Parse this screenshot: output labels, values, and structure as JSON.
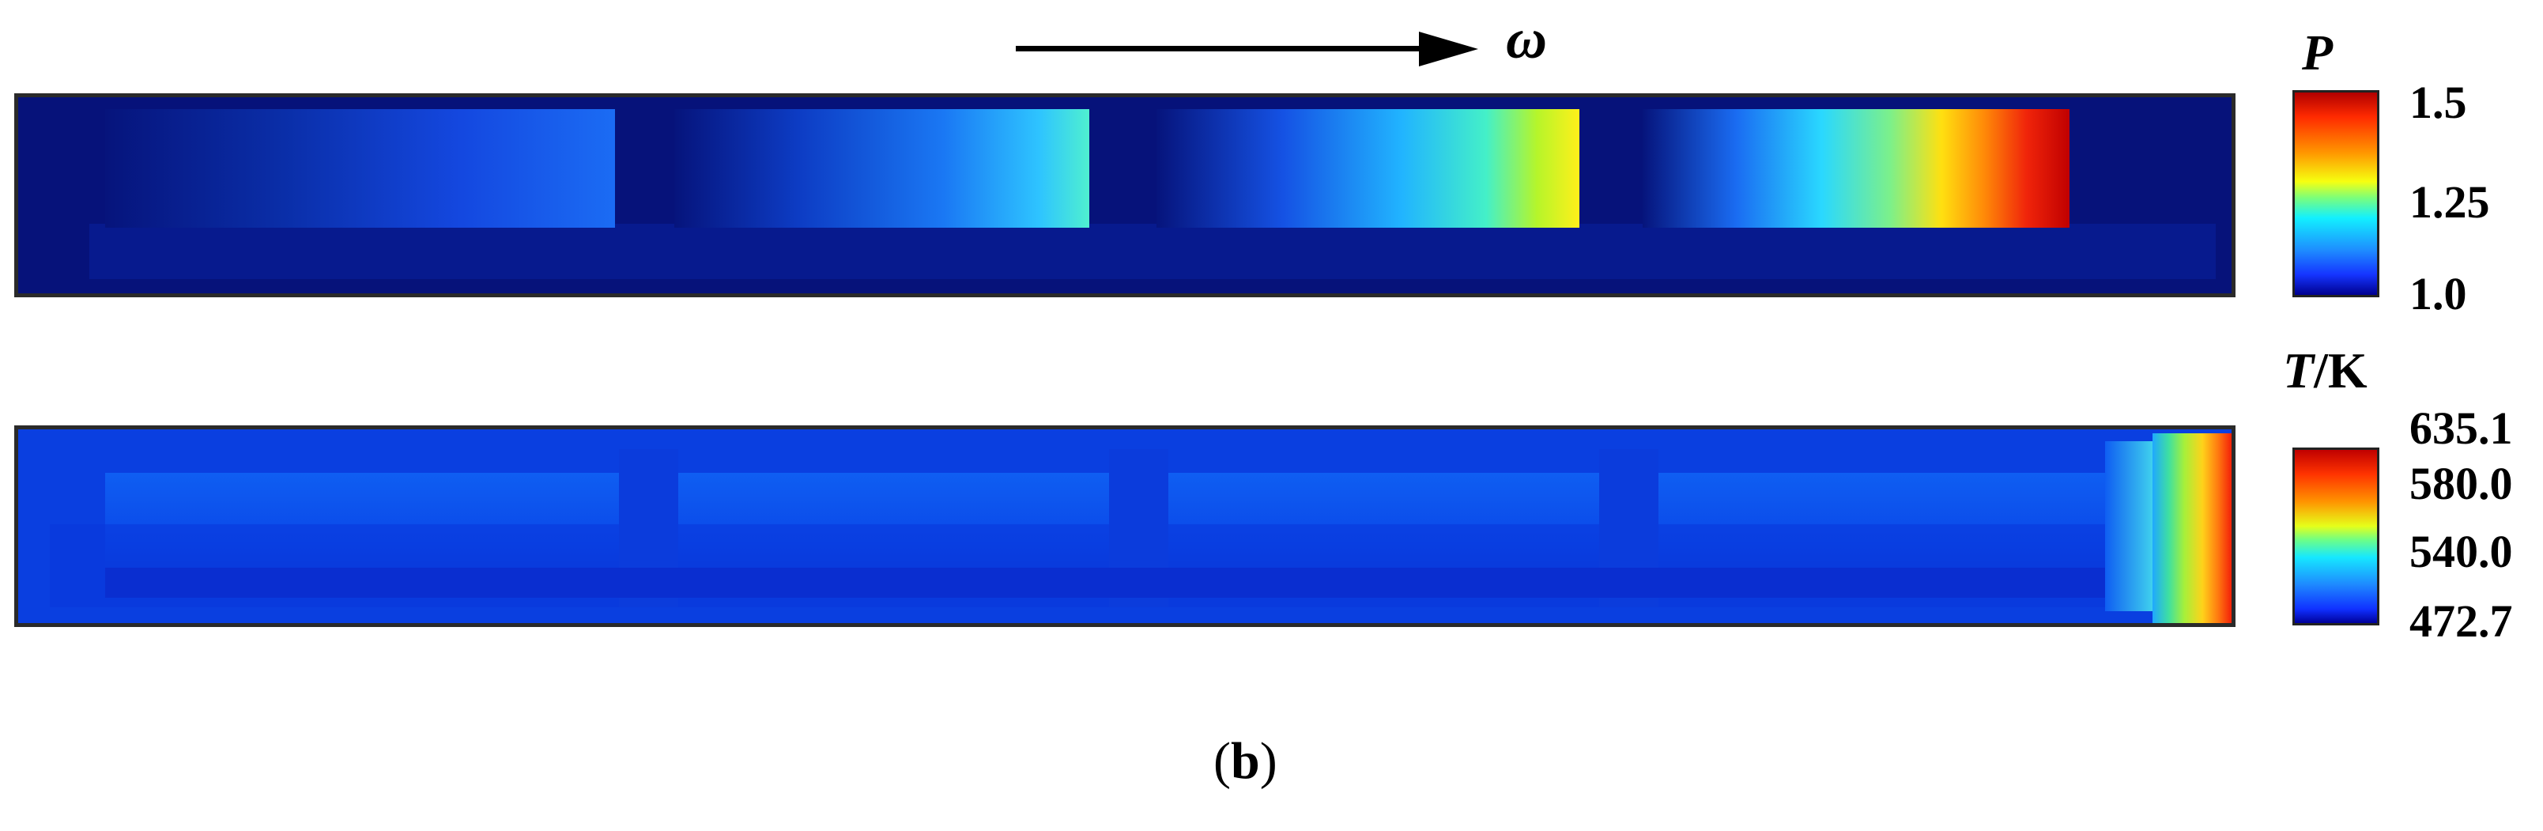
{
  "direction_label": "ω",
  "pressure_colorbar": {
    "symbol": "P",
    "ticks": [
      "1.5",
      "1.25",
      "1.0"
    ]
  },
  "temperature_colorbar": {
    "symbol": "T",
    "unit_suffix": "/K",
    "ticks": [
      "635.1",
      "580.0",
      "540.0",
      "472.7"
    ]
  },
  "caption": {
    "open": "(",
    "letter": "b",
    "close": ")"
  },
  "colors": {
    "min": "#00008f",
    "mid": "#12f0ff",
    "max": "#b10000",
    "frame": "#2a2a2a"
  }
}
